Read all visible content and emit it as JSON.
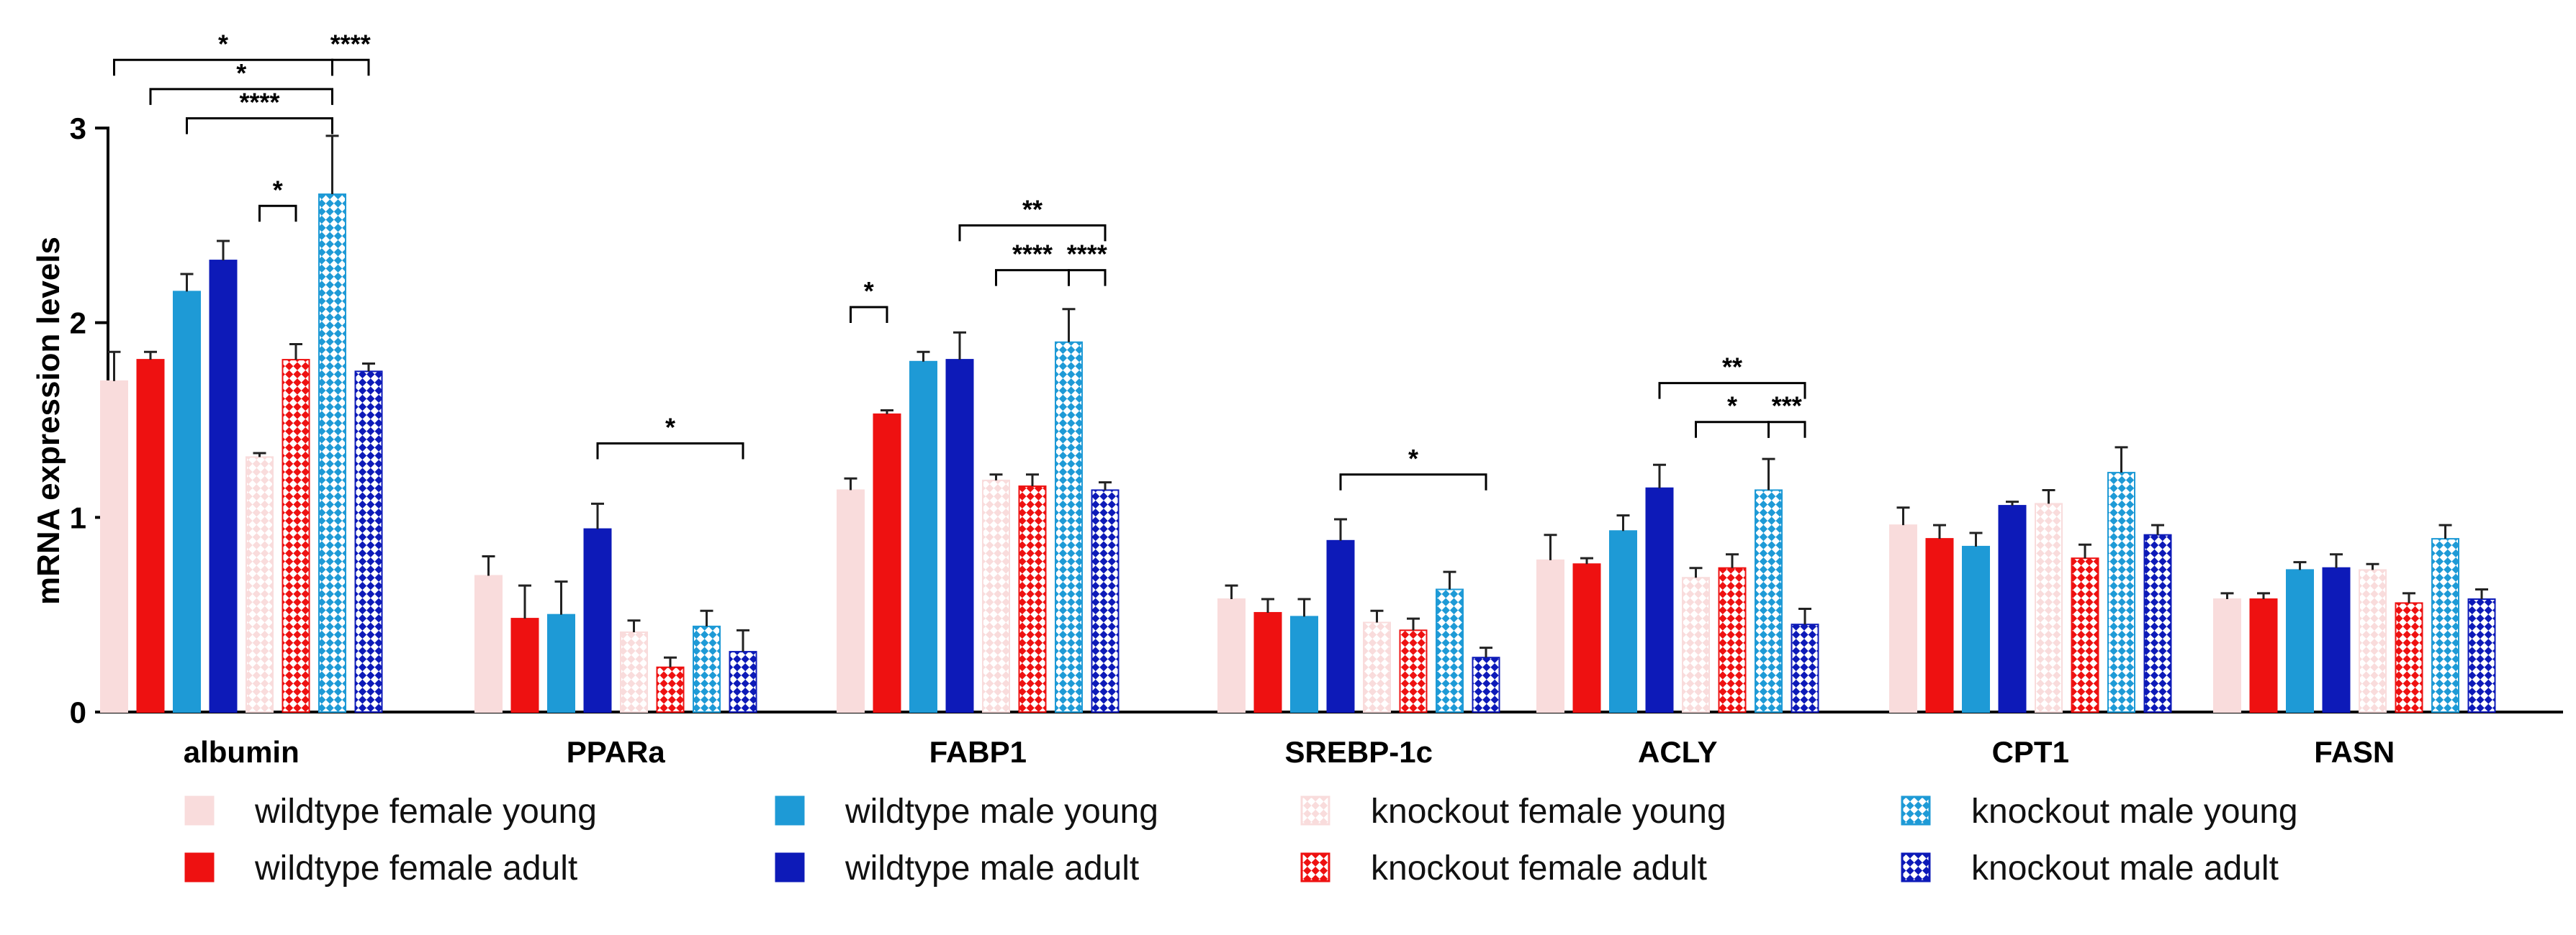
{
  "chart_data": {
    "type": "bar",
    "ylabel": "mRNA expression levels",
    "xlabel": "",
    "ylim": [
      0,
      3
    ],
    "yticks": [
      "0",
      "1",
      "2",
      "3"
    ],
    "categories": [
      "albumin",
      "PPARa",
      "FABP1",
      "SREBP-1c",
      "ACLY",
      "CPT1",
      "FASN"
    ],
    "series": [
      {
        "name": "wildtype female young",
        "color": "#f9dcdc",
        "pattern": "solid",
        "values": [
          1.7,
          0.7,
          1.14,
          0.58,
          0.78,
          0.96,
          0.58
        ],
        "errors": [
          0.15,
          0.1,
          0.06,
          0.07,
          0.13,
          0.09,
          0.03
        ]
      },
      {
        "name": "wildtype female adult",
        "color": "#ee1111",
        "pattern": "solid",
        "values": [
          1.81,
          0.48,
          1.53,
          0.51,
          0.76,
          0.89,
          0.58
        ],
        "errors": [
          0.04,
          0.17,
          0.02,
          0.07,
          0.03,
          0.07,
          0.03
        ]
      },
      {
        "name": "wildtype male young",
        "color": "#1e9ad6",
        "pattern": "solid",
        "values": [
          2.16,
          0.5,
          1.8,
          0.49,
          0.93,
          0.85,
          0.73
        ],
        "errors": [
          0.09,
          0.17,
          0.05,
          0.09,
          0.08,
          0.07,
          0.04
        ]
      },
      {
        "name": "wildtype male adult",
        "color": "#0d1ab8",
        "pattern": "solid",
        "values": [
          2.32,
          0.94,
          1.81,
          0.88,
          1.15,
          1.06,
          0.74
        ],
        "errors": [
          0.1,
          0.13,
          0.14,
          0.11,
          0.12,
          0.02,
          0.07
        ]
      },
      {
        "name": "knockout female young",
        "color": "#f9dcdc",
        "pattern": "check",
        "values": [
          1.31,
          0.41,
          1.19,
          0.46,
          0.69,
          1.07,
          0.73
        ],
        "errors": [
          0.02,
          0.06,
          0.03,
          0.06,
          0.05,
          0.07,
          0.03
        ]
      },
      {
        "name": "knockout female adult",
        "color": "#ee1111",
        "pattern": "check",
        "values": [
          1.81,
          0.23,
          1.16,
          0.42,
          0.74,
          0.79,
          0.56
        ],
        "errors": [
          0.08,
          0.05,
          0.06,
          0.06,
          0.07,
          0.07,
          0.05
        ]
      },
      {
        "name": "knockout male young",
        "color": "#1e9ad6",
        "pattern": "check",
        "values": [
          2.66,
          0.44,
          1.9,
          0.63,
          1.14,
          1.23,
          0.89
        ],
        "errors": [
          0.3,
          0.08,
          0.17,
          0.09,
          0.16,
          0.13,
          0.07
        ]
      },
      {
        "name": "knockout male adult",
        "color": "#0d1ab8",
        "pattern": "check",
        "values": [
          1.75,
          0.31,
          1.14,
          0.28,
          0.45,
          0.91,
          0.58
        ],
        "errors": [
          0.04,
          0.11,
          0.04,
          0.05,
          0.08,
          0.05,
          0.05
        ]
      }
    ],
    "significance": [
      {
        "category": "albumin",
        "from_series": 0,
        "to_series": 6,
        "label": "*",
        "y": 3.35
      },
      {
        "category": "albumin",
        "from_series": 6,
        "to_series": 7,
        "label": "****",
        "y": 3.35
      },
      {
        "category": "albumin",
        "from_series": 1,
        "to_series": 6,
        "label": "*",
        "y": 3.2
      },
      {
        "category": "albumin",
        "from_series": 2,
        "to_series": 6,
        "label": "****",
        "y": 3.05
      },
      {
        "category": "albumin",
        "from_series": 4,
        "to_series": 5,
        "label": "*",
        "y": 2.6
      },
      {
        "category": "PPARa",
        "from_series": 3,
        "to_series": 7,
        "label": "*",
        "y": 1.38
      },
      {
        "category": "FABP1",
        "from_series": 0,
        "to_series": 1,
        "label": "*",
        "y": 2.08
      },
      {
        "category": "FABP1",
        "from_series": 3,
        "to_series": 7,
        "label": "**",
        "y": 2.5
      },
      {
        "category": "FABP1",
        "from_series": 4,
        "to_series": 6,
        "label": "****",
        "y": 2.27
      },
      {
        "category": "FABP1",
        "from_series": 6,
        "to_series": 7,
        "label": "****",
        "y": 2.27
      },
      {
        "category": "SREBP-1c",
        "from_series": 3,
        "to_series": 7,
        "label": "*",
        "y": 1.22
      },
      {
        "category": "ACLY",
        "from_series": 3,
        "to_series": 7,
        "label": "**",
        "y": 1.69
      },
      {
        "category": "ACLY",
        "from_series": 4,
        "to_series": 6,
        "label": "*",
        "y": 1.49
      },
      {
        "category": "ACLY",
        "from_series": 6,
        "to_series": 7,
        "label": "***",
        "y": 1.49
      }
    ]
  }
}
